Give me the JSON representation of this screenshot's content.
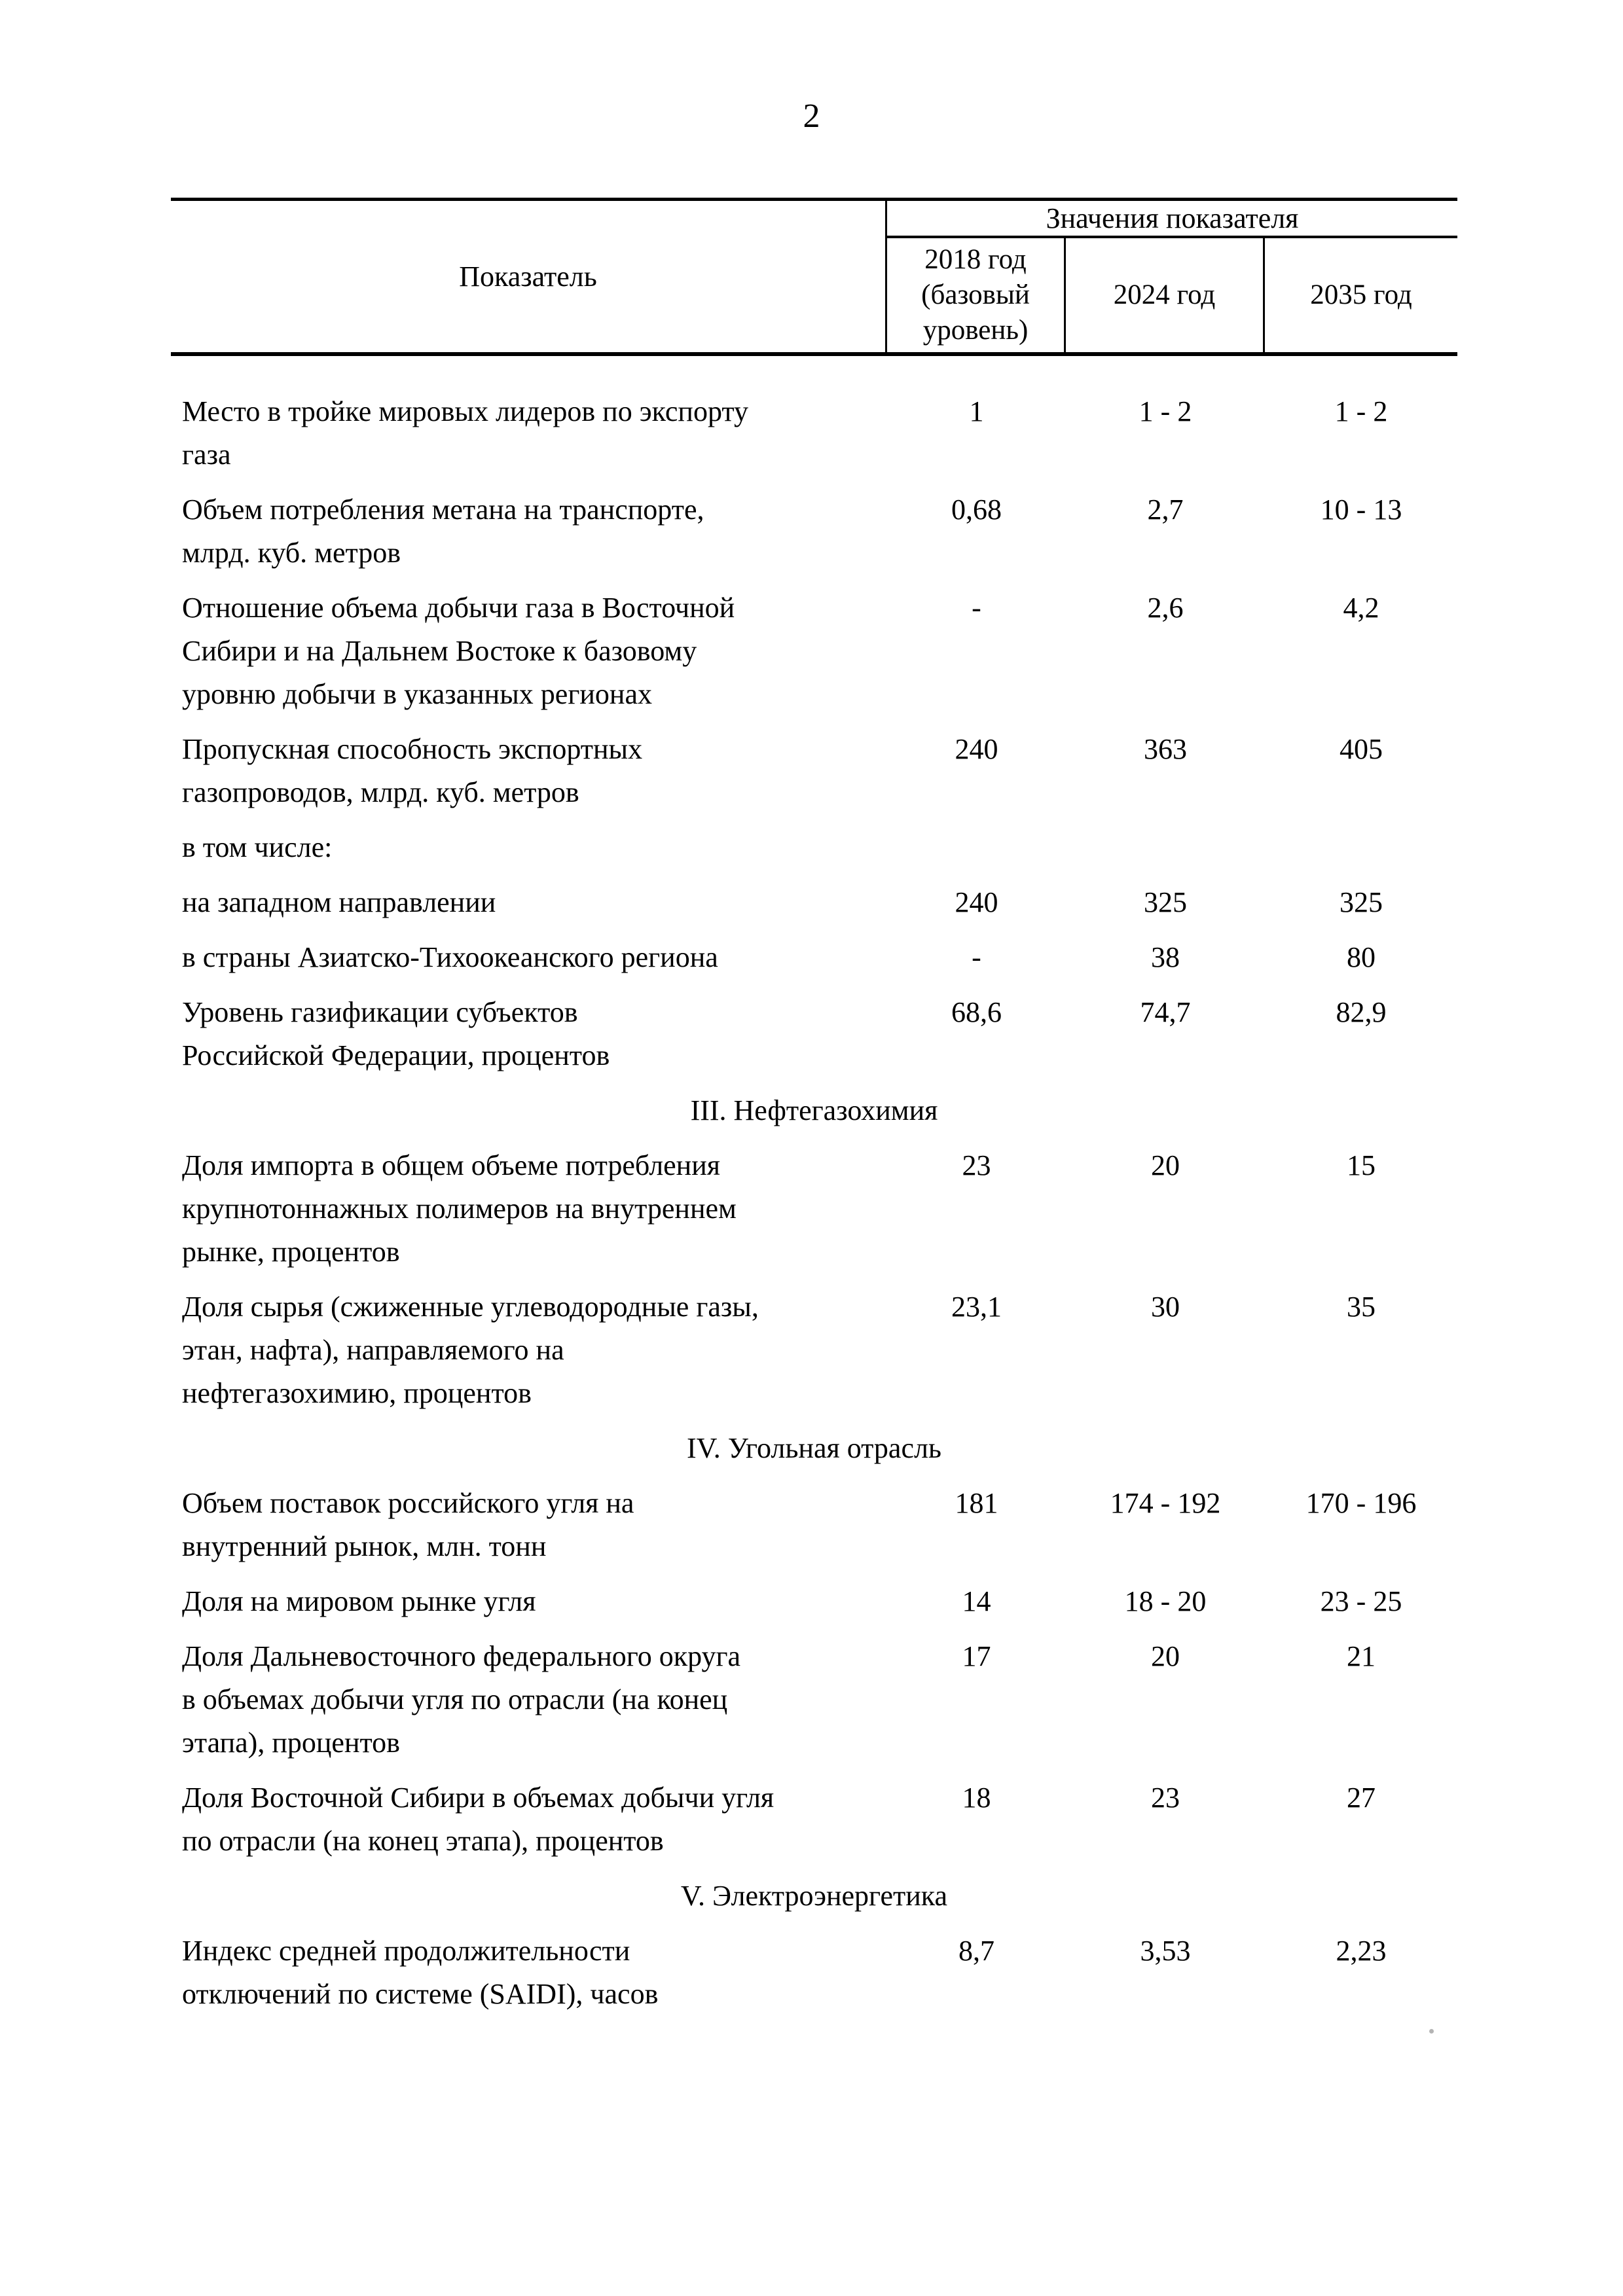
{
  "page": {
    "number": "2"
  },
  "table": {
    "header": {
      "indicator": "Показатель",
      "values_group": "Значения показателя",
      "col_2018": "2018 год\n(базовый\nуровень)",
      "col_2024": "2024 год",
      "col_2035": "2035 год"
    },
    "rows": [
      {
        "type": "data",
        "label": "Место в тройке мировых лидеров по экспорту\nгаза",
        "values": [
          "1",
          "1 - 2",
          "1 - 2"
        ]
      },
      {
        "type": "data",
        "label": "Объем потребления метана на транспорте,\nмлрд. куб. метров",
        "values": [
          "0,68",
          "2,7",
          "10 - 13"
        ]
      },
      {
        "type": "data",
        "label": "Отношение объема добычи газа в Восточной\nСибири и на Дальнем Востоке к базовому\nуровню добычи в указанных регионах",
        "values": [
          "-",
          "2,6",
          "4,2"
        ]
      },
      {
        "type": "data",
        "label": "Пропускная способность экспортных\nгазопроводов, млрд. куб. метров",
        "values": [
          "240",
          "363",
          "405"
        ]
      },
      {
        "type": "data",
        "label": "в том числе:",
        "values": [
          "",
          "",
          ""
        ]
      },
      {
        "type": "data",
        "label": "на западном направлении",
        "values": [
          "240",
          "325",
          "325"
        ]
      },
      {
        "type": "data",
        "label": "в страны Азиатско-Тихоокеанского региона",
        "values": [
          "-",
          "38",
          "80"
        ]
      },
      {
        "type": "data",
        "label": "Уровень газификации субъектов\nРоссийской Федерации, процентов",
        "values": [
          "68,6",
          "74,7",
          "82,9"
        ]
      },
      {
        "type": "section",
        "label": "III. Нефтегазохимия"
      },
      {
        "type": "data",
        "label": "Доля импорта в общем объеме потребления\nкрупнотоннажных полимеров на внутреннем\nрынке, процентов",
        "values": [
          "23",
          "20",
          "15"
        ]
      },
      {
        "type": "data",
        "label": "Доля сырья (сжиженные углеводородные газы,\nэтан, нафта), направляемого на\nнефтегазохимию, процентов",
        "values": [
          "23,1",
          "30",
          "35"
        ]
      },
      {
        "type": "section",
        "label": "IV. Угольная отрасль"
      },
      {
        "type": "data",
        "label": "Объем поставок российского угля на\nвнутренний рынок, млн. тонн",
        "values": [
          "181",
          "174 - 192",
          "170 - 196"
        ]
      },
      {
        "type": "data",
        "label": "Доля на мировом рынке угля",
        "values": [
          "14",
          "18 - 20",
          "23 - 25"
        ]
      },
      {
        "type": "data",
        "label": "Доля Дальневосточного федерального округа\nв объемах добычи угля по отрасли (на конец\nэтапа), процентов",
        "values": [
          "17",
          "20",
          "21"
        ]
      },
      {
        "type": "data",
        "label": "Доля Восточной Сибири в объемах добычи угля\nпо отрасли (на конец этапа), процентов",
        "values": [
          "18",
          "23",
          "27"
        ]
      },
      {
        "type": "section",
        "label": "V. Электроэнергетика"
      },
      {
        "type": "data",
        "label": "Индекс средней продолжительности\nотключений по системе (SAIDI), часов",
        "values": [
          "8,7",
          "3,53",
          "2,23"
        ]
      }
    ]
  }
}
